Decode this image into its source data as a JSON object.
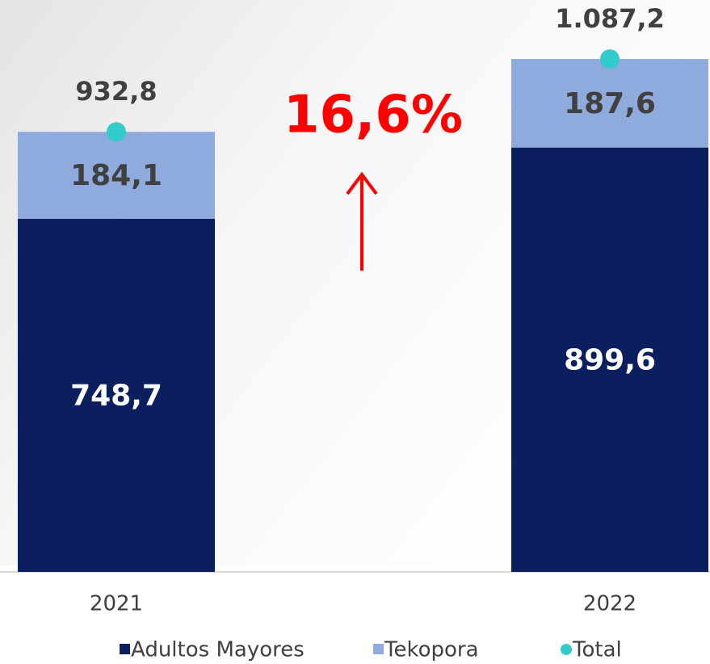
{
  "chart_data": {
    "type": "bar",
    "stacked": true,
    "categories": [
      "2021",
      "2022"
    ],
    "series": [
      {
        "name": "Adultos Mayores",
        "color": "#0b1f5e",
        "values": [
          748.7,
          899.6
        ],
        "value_labels": [
          "748,7",
          "899,6"
        ],
        "label_color": "#ffffff"
      },
      {
        "name": "Tekopora",
        "color": "#8faadc",
        "values": [
          184.1,
          187.6
        ],
        "value_labels": [
          "184,1",
          "187,6"
        ],
        "label_color": "#404040"
      },
      {
        "name": "Total",
        "type": "scatter",
        "color": "#33cccc",
        "values": [
          932.8,
          1087.2
        ],
        "value_labels": [
          "932,8",
          "1.087,2"
        ],
        "label_color": "#404040"
      }
    ],
    "annotation": "16,6%",
    "annotation_color": "#ff0000"
  }
}
